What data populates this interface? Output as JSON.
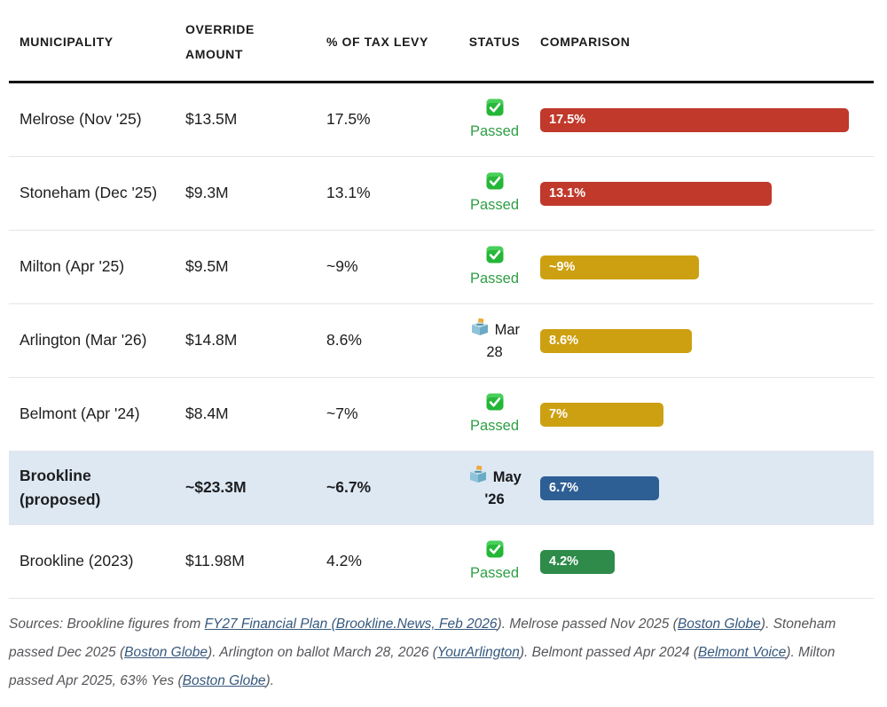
{
  "table": {
    "columns": [
      {
        "key": "municipality",
        "label": "MUNICIPALITY"
      },
      {
        "key": "amount",
        "label": "OVERRIDE AMOUNT"
      },
      {
        "key": "levy",
        "label": "% OF TAX LEVY"
      },
      {
        "key": "status",
        "label": "STATUS"
      },
      {
        "key": "comparison",
        "label": "COMPARISON"
      }
    ],
    "bar_max_value": 17.5,
    "bar_max_pct": 94.7,
    "rows": [
      {
        "municipality": "Melrose (Nov '25)",
        "amount": "$13.5M",
        "levy": "17.5%",
        "status": {
          "type": "passed",
          "icon": "check-emoji-icon",
          "label": "Passed"
        },
        "bar": {
          "label": "17.5%",
          "value": 17.5,
          "color": "#c0392b"
        },
        "highlight": false
      },
      {
        "municipality": "Stoneham (Dec '25)",
        "amount": "$9.3M",
        "levy": "13.1%",
        "status": {
          "type": "passed",
          "icon": "check-emoji-icon",
          "label": "Passed"
        },
        "bar": {
          "label": "13.1%",
          "value": 13.1,
          "color": "#c0392b"
        },
        "highlight": false
      },
      {
        "municipality": "Milton (Apr '25)",
        "amount": "$9.5M",
        "levy": "~9%",
        "status": {
          "type": "passed",
          "icon": "check-emoji-icon",
          "label": "Passed"
        },
        "bar": {
          "label": "~9%",
          "value": 9,
          "color": "#cda012"
        },
        "highlight": false
      },
      {
        "municipality": "Arlington (Mar '26)",
        "amount": "$14.8M",
        "levy": "8.6%",
        "status": {
          "type": "pending",
          "icon": "ballot-box-icon",
          "label": "Mar 28"
        },
        "bar": {
          "label": "8.6%",
          "value": 8.6,
          "color": "#cda012"
        },
        "highlight": false
      },
      {
        "municipality": "Belmont (Apr '24)",
        "amount": "$8.4M",
        "levy": "~7%",
        "status": {
          "type": "passed",
          "icon": "check-emoji-icon",
          "label": "Passed"
        },
        "bar": {
          "label": "7%",
          "value": 7,
          "color": "#cda012"
        },
        "highlight": false
      },
      {
        "municipality": "Brookline (proposed)",
        "amount": "~$23.3M",
        "levy": "~6.7%",
        "status": {
          "type": "pending",
          "icon": "ballot-box-icon",
          "label": "May '26"
        },
        "bar": {
          "label": "6.7%",
          "value": 6.7,
          "color": "#2e5f94"
        },
        "highlight": true
      },
      {
        "municipality": "Brookline (2023)",
        "amount": "$11.98M",
        "levy": "4.2%",
        "status": {
          "type": "passed",
          "icon": "check-emoji-icon",
          "label": "Passed"
        },
        "bar": {
          "label": "4.2%",
          "value": 4.2,
          "color": "#2e8b4a"
        },
        "highlight": false
      }
    ]
  },
  "colors": {
    "passed_text": "#2f9e45",
    "pending_text": "#17181a",
    "highlight_row_bg": "#dde8f3",
    "header_rule": "#141414",
    "link": "#35587d"
  },
  "footer": {
    "segments": [
      {
        "text": "Sources: Brookline figures from ",
        "link": false
      },
      {
        "text": "FY27 Financial Plan (Brookline.News, Feb 2026",
        "link": true
      },
      {
        "text": "). Melrose passed Nov 2025 (",
        "link": false
      },
      {
        "text": "Boston Globe",
        "link": true
      },
      {
        "text": "). Stoneham passed Dec 2025 (",
        "link": false
      },
      {
        "text": "Boston Globe",
        "link": true
      },
      {
        "text": "). Arlington on ballot March 28, 2026 (",
        "link": false
      },
      {
        "text": "YourArlington",
        "link": true
      },
      {
        "text": "). Belmont passed Apr 2024 (",
        "link": false
      },
      {
        "text": "Belmont Voice",
        "link": true
      },
      {
        "text": "). Milton passed Apr 2025, 63% Yes (",
        "link": false
      },
      {
        "text": "Boston Globe",
        "link": true
      },
      {
        "text": ").",
        "link": false
      }
    ]
  }
}
